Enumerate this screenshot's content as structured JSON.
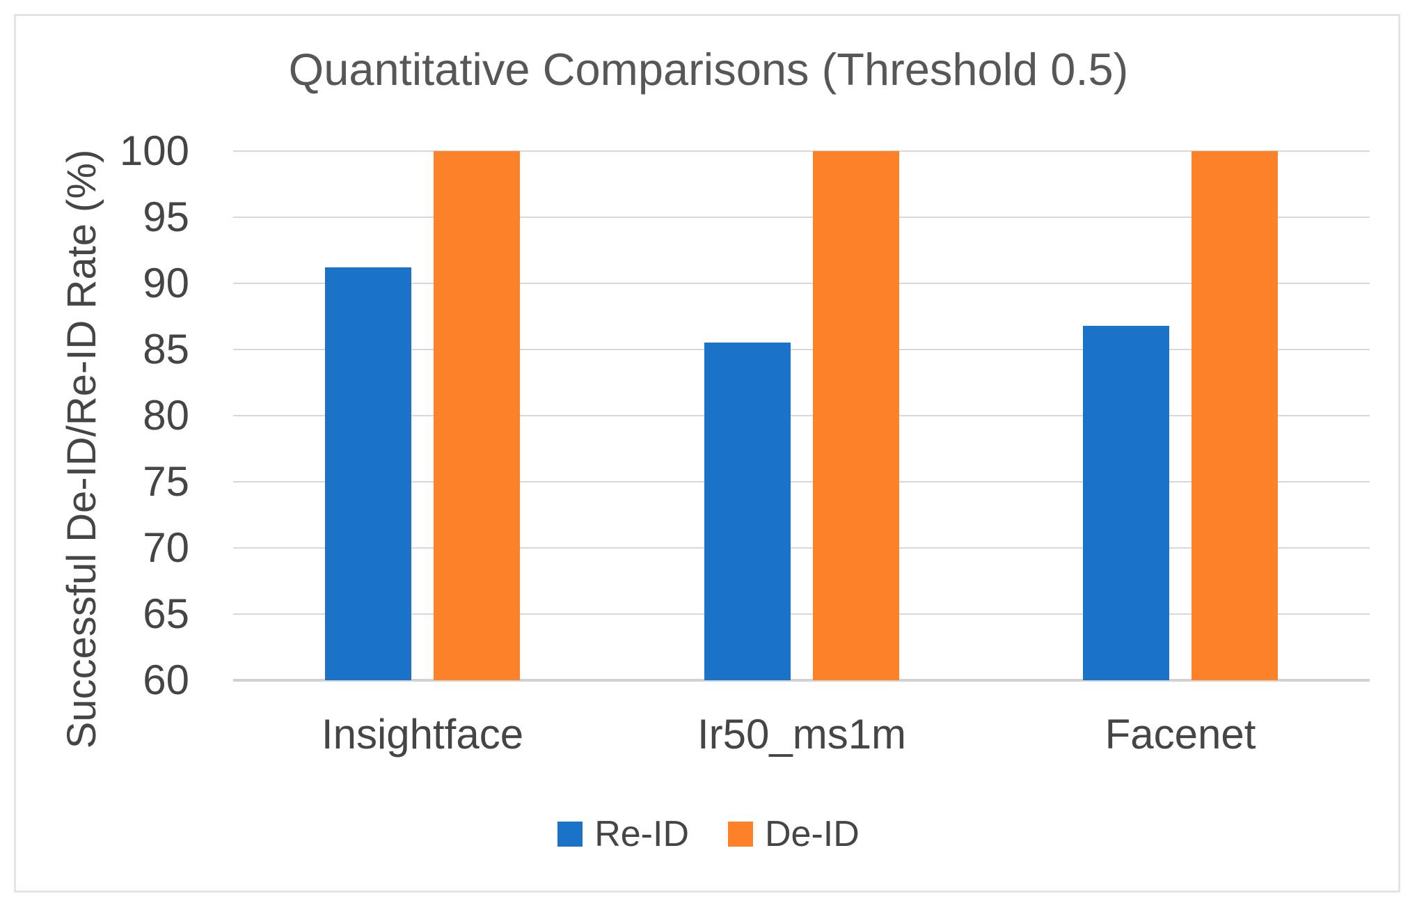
{
  "chart_data": {
    "type": "bar",
    "title": "Quantitative Comparisons (Threshold 0.5)",
    "ylabel": "Successful De-ID/Re-ID Rate (%)",
    "xlabel": "",
    "categories": [
      "Insightface",
      "Ir50_ms1m",
      "Facenet"
    ],
    "series": [
      {
        "name": "Re-ID",
        "color": "#1b73c7",
        "values": [
          91.2,
          85.5,
          86.8
        ]
      },
      {
        "name": "De-ID",
        "color": "#fc8128",
        "values": [
          100,
          100,
          100
        ]
      }
    ],
    "y_axis": {
      "min": 60,
      "max": 100,
      "tick_step": 5,
      "ticks": [
        60,
        65,
        70,
        75,
        80,
        85,
        90,
        95,
        100
      ]
    },
    "grid": true,
    "legend_position": "bottom",
    "colors": {
      "gridline": "#d8d8d8",
      "axis_line": "#d2d2d2",
      "text": "#454545",
      "title_text": "#575757",
      "frame_border": "#e4e4e4",
      "background": "#ffffff"
    }
  }
}
